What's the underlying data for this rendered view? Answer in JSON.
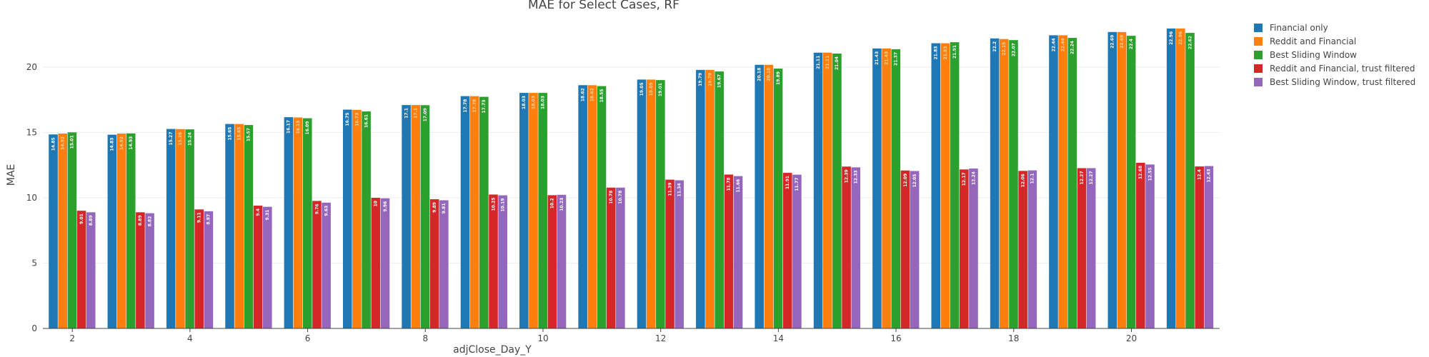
{
  "chart_data": {
    "type": "bar",
    "title": "MAE for Select Cases, RF",
    "xlabel": "adjClose_Day_Y",
    "ylabel": "MAE",
    "ylim": [
      0,
      23.5
    ],
    "y_ticks": [
      0,
      5,
      10,
      15,
      20
    ],
    "x_ticks": [
      2,
      4,
      6,
      8,
      10,
      12,
      14,
      16,
      18,
      20
    ],
    "categories": [
      2,
      3,
      4,
      5,
      6,
      7,
      8,
      9,
      10,
      11,
      12,
      13,
      14,
      15,
      16,
      17,
      18,
      19,
      20,
      21
    ],
    "grid": true,
    "legend_position": "top-right",
    "series": [
      {
        "name": "Financial only",
        "color": "#1f77b4",
        "values": [
          14.85,
          14.83,
          15.27,
          15.65,
          16.17,
          16.75,
          17.1,
          17.78,
          18.03,
          18.62,
          19.05,
          19.79,
          20.18,
          21.11,
          21.43,
          21.83,
          22.2,
          22.44,
          22.69,
          22.96
        ]
      },
      {
        "name": "Reddit and Financial",
        "color": "#ff7f0e",
        "values": [
          14.92,
          14.92,
          15.26,
          15.65,
          16.15,
          16.73,
          17.1,
          17.78,
          18.03,
          18.62,
          19.05,
          19.79,
          20.18,
          21.11,
          21.43,
          21.83,
          22.15,
          22.44,
          22.69,
          22.96
        ]
      },
      {
        "name": "Best Sliding Window",
        "color": "#2ca02c",
        "values": [
          15.01,
          14.93,
          15.24,
          15.57,
          16.09,
          16.61,
          17.09,
          17.73,
          18.03,
          18.55,
          19.01,
          19.67,
          19.89,
          21.04,
          21.37,
          21.91,
          22.07,
          22.24,
          22.4,
          22.62
        ]
      },
      {
        "name": "Reddit and Financial, trust filtered",
        "color": "#d62728",
        "values": [
          9.01,
          8.89,
          9.11,
          9.4,
          9.76,
          10.0,
          9.89,
          10.25,
          10.2,
          10.78,
          11.39,
          11.78,
          11.91,
          12.39,
          12.09,
          12.17,
          12.06,
          12.27,
          12.68,
          12.4
        ]
      },
      {
        "name": "Best Sliding Window, trust filtered",
        "color": "#9467bd",
        "values": [
          8.89,
          8.82,
          8.97,
          9.31,
          9.63,
          9.96,
          9.81,
          10.19,
          10.23,
          10.78,
          11.34,
          11.66,
          11.77,
          12.33,
          12.05,
          12.24,
          12.1,
          12.27,
          12.55,
          12.43
        ]
      }
    ]
  }
}
